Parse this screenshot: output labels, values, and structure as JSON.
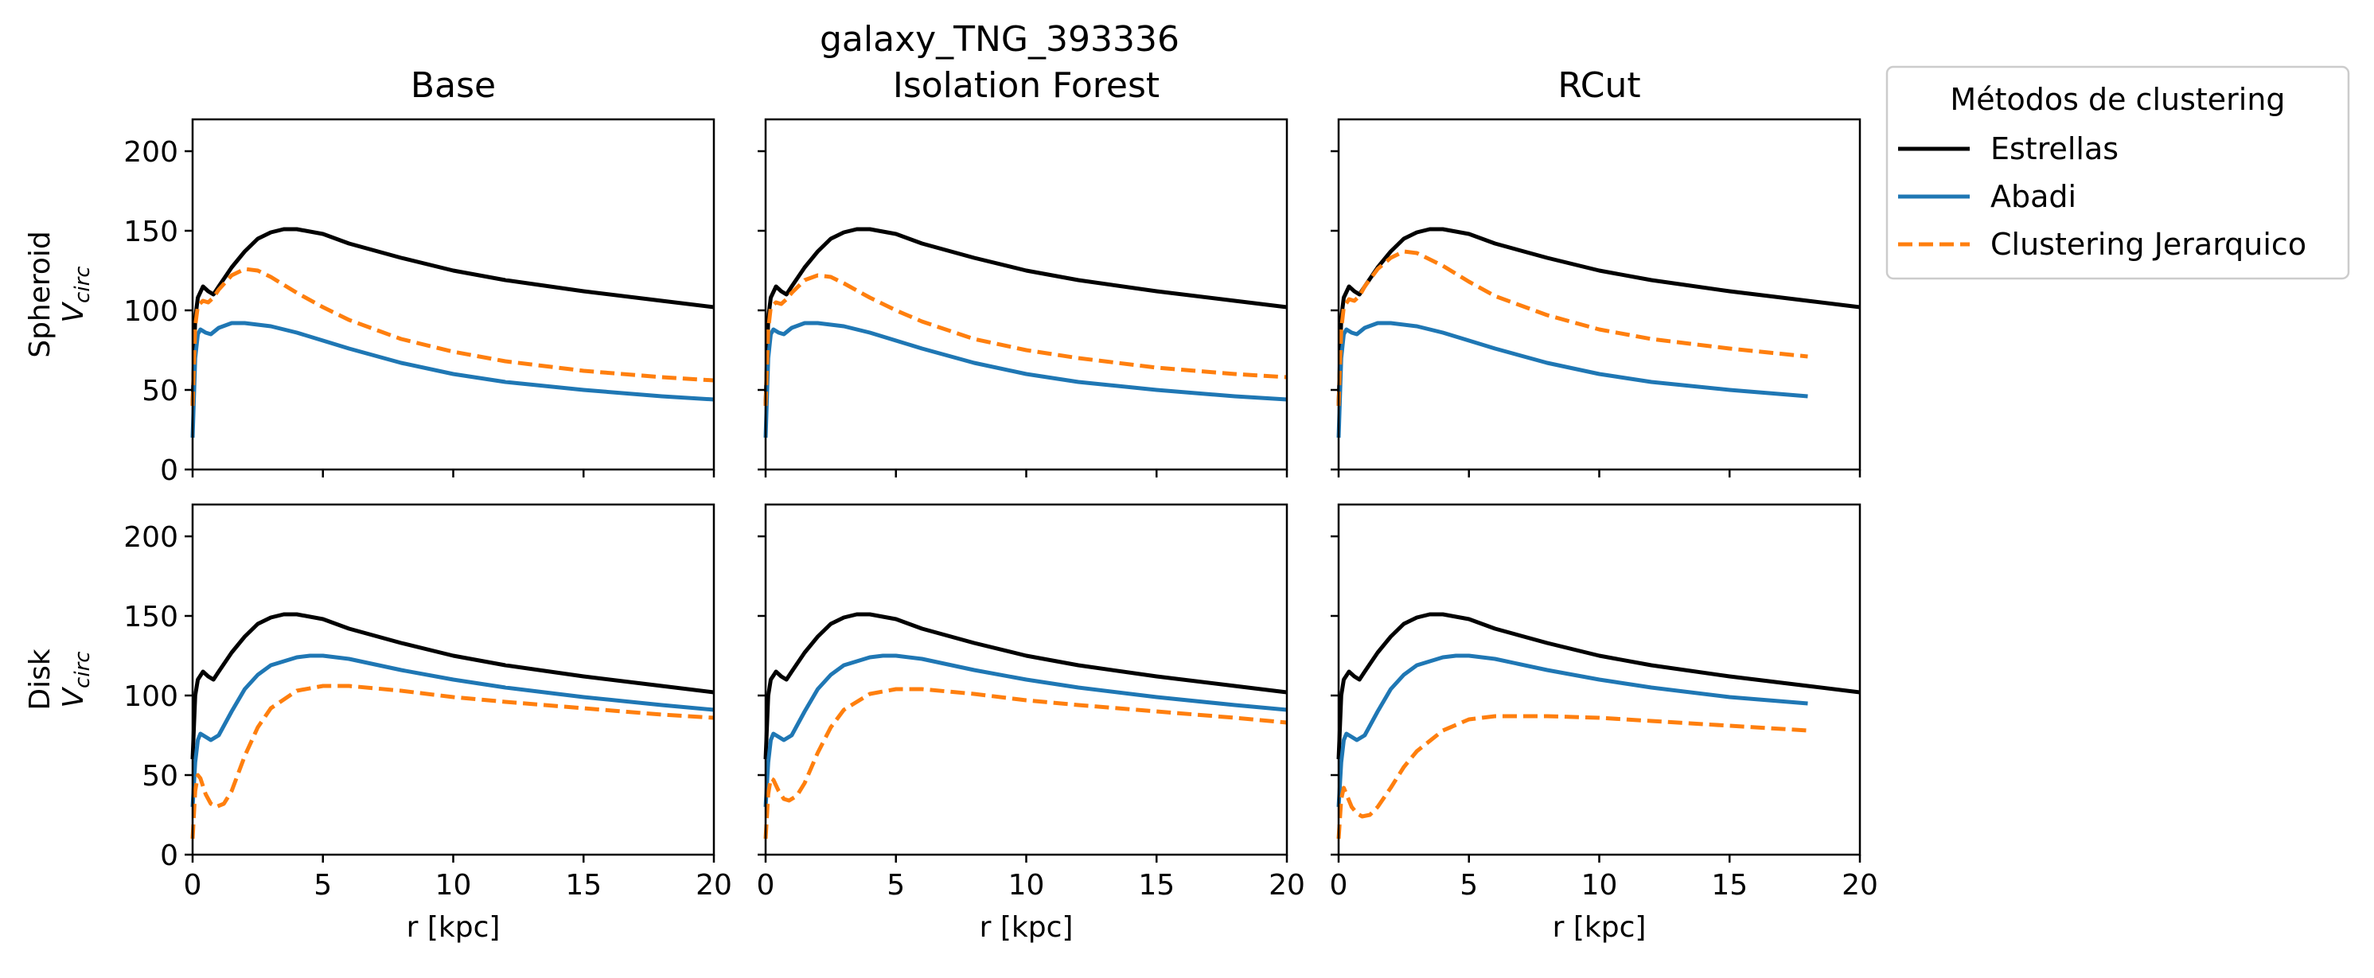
{
  "chart_data": {
    "type": "line",
    "title": "galaxy_TNG_393336",
    "column_titles": [
      "Base",
      "Isolation Forest",
      "RCut"
    ],
    "row_labels": [
      {
        "name": "Spheroid",
        "symbol": "V",
        "subscript": "circ"
      },
      {
        "name": "Disk",
        "symbol": "V",
        "subscript": "circ"
      }
    ],
    "xlabel": "r [kpc]",
    "xlim": [
      0,
      20
    ],
    "ylim": [
      0,
      220
    ],
    "xticks": [
      "0",
      "5",
      "10",
      "15",
      "20"
    ],
    "yticks": [
      "0",
      "50",
      "100",
      "150",
      "200"
    ],
    "legend": {
      "title": "Métodos de clustering",
      "position": "outside-upper-right",
      "entries": [
        {
          "label": "Estrellas",
          "color": "#000000",
          "style": "solid"
        },
        {
          "label": "Abadi",
          "color": "#1f77b4",
          "style": "solid"
        },
        {
          "label": "Clustering Jerarquico",
          "color": "#ff7f0e",
          "style": "dashed"
        }
      ]
    },
    "panels": [
      {
        "row": 0,
        "col": 0,
        "series": [
          {
            "key": "estrellas",
            "x": [
              0,
              0.1,
              0.2,
              0.4,
              0.6,
              0.8,
              1,
              1.5,
              2,
              2.5,
              3,
              3.5,
              4,
              5,
              6,
              8,
              10,
              12,
              15,
              18,
              20
            ],
            "y": [
              40,
              95,
              108,
              115,
              112,
              110,
              115,
              127,
              137,
              145,
              149,
              151,
              151,
              148,
              142,
              133,
              125,
              119,
              112,
              106,
              102
            ]
          },
          {
            "key": "abadi",
            "x": [
              0,
              0.1,
              0.2,
              0.3,
              0.5,
              0.7,
              1,
              1.5,
              2,
              3,
              4,
              5,
              6,
              8,
              10,
              12,
              15,
              18,
              20
            ],
            "y": [
              20,
              70,
              85,
              88,
              86,
              85,
              89,
              92,
              92,
              90,
              86,
              81,
              76,
              67,
              60,
              55,
              50,
              46,
              44
            ]
          },
          {
            "key": "clustering",
            "x": [
              0,
              0.1,
              0.2,
              0.4,
              0.6,
              0.8,
              1,
              1.5,
              2,
              2.5,
              3,
              4,
              5,
              6,
              8,
              10,
              12,
              15,
              18,
              20
            ],
            "y": [
              40,
              90,
              103,
              106,
              105,
              108,
              113,
              122,
              126,
              125,
              121,
              111,
              102,
              94,
              82,
              74,
              68,
              62,
              58,
              56
            ]
          }
        ]
      },
      {
        "row": 0,
        "col": 1,
        "series": [
          {
            "key": "estrellas",
            "x": [
              0,
              0.1,
              0.2,
              0.4,
              0.6,
              0.8,
              1,
              1.5,
              2,
              2.5,
              3,
              3.5,
              4,
              5,
              6,
              8,
              10,
              12,
              15,
              18,
              20
            ],
            "y": [
              40,
              95,
              108,
              115,
              112,
              110,
              115,
              127,
              137,
              145,
              149,
              151,
              151,
              148,
              142,
              133,
              125,
              119,
              112,
              106,
              102
            ]
          },
          {
            "key": "abadi",
            "x": [
              0,
              0.1,
              0.2,
              0.3,
              0.5,
              0.7,
              1,
              1.5,
              2,
              3,
              4,
              5,
              6,
              8,
              10,
              12,
              15,
              18,
              20
            ],
            "y": [
              20,
              70,
              85,
              88,
              86,
              85,
              89,
              92,
              92,
              90,
              86,
              81,
              76,
              67,
              60,
              55,
              50,
              46,
              44
            ]
          },
          {
            "key": "clustering",
            "x": [
              0,
              0.1,
              0.2,
              0.4,
              0.6,
              0.8,
              1,
              1.5,
              2,
              2.5,
              3,
              4,
              5,
              6,
              8,
              10,
              12,
              15,
              18,
              20
            ],
            "y": [
              40,
              88,
              102,
              105,
              104,
              107,
              111,
              119,
              122,
              121,
              117,
              108,
              100,
              93,
              82,
              75,
              70,
              64,
              60,
              58
            ]
          }
        ]
      },
      {
        "row": 0,
        "col": 2,
        "series": [
          {
            "key": "estrellas",
            "x": [
              0,
              0.1,
              0.2,
              0.4,
              0.6,
              0.8,
              1,
              1.5,
              2,
              2.5,
              3,
              3.5,
              4,
              5,
              6,
              8,
              10,
              12,
              15,
              18,
              20
            ],
            "y": [
              40,
              95,
              108,
              115,
              112,
              110,
              115,
              127,
              137,
              145,
              149,
              151,
              151,
              148,
              142,
              133,
              125,
              119,
              112,
              106,
              102
            ]
          },
          {
            "key": "abadi",
            "x": [
              0,
              0.1,
              0.2,
              0.3,
              0.5,
              0.7,
              1,
              1.5,
              2,
              3,
              4,
              5,
              6,
              8,
              10,
              12,
              15,
              18
            ],
            "y": [
              20,
              70,
              85,
              88,
              86,
              85,
              89,
              92,
              92,
              90,
              86,
              81,
              76,
              67,
              60,
              55,
              50,
              46
            ]
          },
          {
            "key": "clustering",
            "x": [
              0,
              0.1,
              0.2,
              0.4,
              0.6,
              0.8,
              1,
              1.5,
              2,
              2.5,
              3,
              4,
              5,
              6,
              8,
              10,
              12,
              15,
              18
            ],
            "y": [
              40,
              88,
              102,
              107,
              106,
              109,
              115,
              126,
              133,
              137,
              136,
              128,
              118,
              109,
              97,
              88,
              82,
              76,
              71
            ]
          }
        ]
      },
      {
        "row": 1,
        "col": 0,
        "series": [
          {
            "key": "estrellas",
            "x": [
              0,
              0.1,
              0.2,
              0.4,
              0.6,
              0.8,
              1,
              1.5,
              2,
              2.5,
              3,
              3.5,
              4,
              5,
              6,
              8,
              10,
              12,
              15,
              18,
              20
            ],
            "y": [
              60,
              100,
              110,
              115,
              112,
              110,
              115,
              127,
              137,
              145,
              149,
              151,
              151,
              148,
              142,
              133,
              125,
              119,
              112,
              106,
              102
            ]
          },
          {
            "key": "abadi",
            "x": [
              0,
              0.1,
              0.2,
              0.3,
              0.5,
              0.7,
              1,
              1.5,
              2,
              2.5,
              3,
              4,
              4.5,
              5,
              6,
              8,
              10,
              12,
              15,
              18,
              20
            ],
            "y": [
              30,
              58,
              72,
              76,
              74,
              72,
              75,
              90,
              104,
              113,
              119,
              124,
              125,
              125,
              123,
              116,
              110,
              105,
              99,
              94,
              91
            ]
          },
          {
            "key": "clustering",
            "x": [
              0,
              0.1,
              0.2,
              0.3,
              0.5,
              0.7,
              0.9,
              1.2,
              1.5,
              2,
              2.5,
              3,
              4,
              5,
              6,
              8,
              10,
              12,
              15,
              18,
              20
            ],
            "y": [
              10,
              40,
              50,
              48,
              38,
              32,
              30,
              32,
              40,
              62,
              80,
              92,
              103,
              106,
              106,
              103,
              99,
              96,
              92,
              88,
              86
            ]
          }
        ]
      },
      {
        "row": 1,
        "col": 1,
        "series": [
          {
            "key": "estrellas",
            "x": [
              0,
              0.1,
              0.2,
              0.4,
              0.6,
              0.8,
              1,
              1.5,
              2,
              2.5,
              3,
              3.5,
              4,
              5,
              6,
              8,
              10,
              12,
              15,
              18,
              20
            ],
            "y": [
              60,
              100,
              110,
              115,
              112,
              110,
              115,
              127,
              137,
              145,
              149,
              151,
              151,
              148,
              142,
              133,
              125,
              119,
              112,
              106,
              102
            ]
          },
          {
            "key": "abadi",
            "x": [
              0,
              0.1,
              0.2,
              0.3,
              0.5,
              0.7,
              1,
              1.5,
              2,
              2.5,
              3,
              4,
              4.5,
              5,
              6,
              8,
              10,
              12,
              15,
              18,
              20
            ],
            "y": [
              30,
              58,
              72,
              76,
              74,
              72,
              75,
              90,
              104,
              113,
              119,
              124,
              125,
              125,
              123,
              116,
              110,
              105,
              99,
              94,
              91
            ]
          },
          {
            "key": "clustering",
            "x": [
              0,
              0.1,
              0.2,
              0.3,
              0.5,
              0.7,
              0.9,
              1.2,
              1.5,
              2,
              2.5,
              3,
              4,
              5,
              6,
              8,
              10,
              12,
              15,
              18,
              20
            ],
            "y": [
              10,
              38,
              48,
              47,
              40,
              35,
              34,
              37,
              45,
              64,
              80,
              91,
              101,
              104,
              104,
              101,
              97,
              94,
              90,
              86,
              83
            ]
          }
        ]
      },
      {
        "row": 1,
        "col": 2,
        "series": [
          {
            "key": "estrellas",
            "x": [
              0,
              0.1,
              0.2,
              0.4,
              0.6,
              0.8,
              1,
              1.5,
              2,
              2.5,
              3,
              3.5,
              4,
              5,
              6,
              8,
              10,
              12,
              15,
              18,
              20
            ],
            "y": [
              60,
              100,
              110,
              115,
              112,
              110,
              115,
              127,
              137,
              145,
              149,
              151,
              151,
              148,
              142,
              133,
              125,
              119,
              112,
              106,
              102
            ]
          },
          {
            "key": "abadi",
            "x": [
              0,
              0.1,
              0.2,
              0.3,
              0.5,
              0.7,
              1,
              1.5,
              2,
              2.5,
              3,
              4,
              4.5,
              5,
              6,
              8,
              10,
              12,
              15,
              18
            ],
            "y": [
              30,
              58,
              72,
              76,
              74,
              72,
              75,
              90,
              104,
              113,
              119,
              124,
              125,
              125,
              123,
              116,
              110,
              105,
              99,
              95
            ]
          },
          {
            "key": "clustering",
            "x": [
              0,
              0.1,
              0.2,
              0.3,
              0.5,
              0.7,
              0.9,
              1.2,
              1.5,
              2,
              2.5,
              3,
              4,
              5,
              6,
              8,
              10,
              12,
              15,
              18
            ],
            "y": [
              10,
              35,
              42,
              38,
              30,
              26,
              24,
              25,
              30,
              42,
              55,
              65,
              78,
              85,
              87,
              87,
              86,
              84,
              81,
              78
            ]
          }
        ]
      }
    ]
  }
}
